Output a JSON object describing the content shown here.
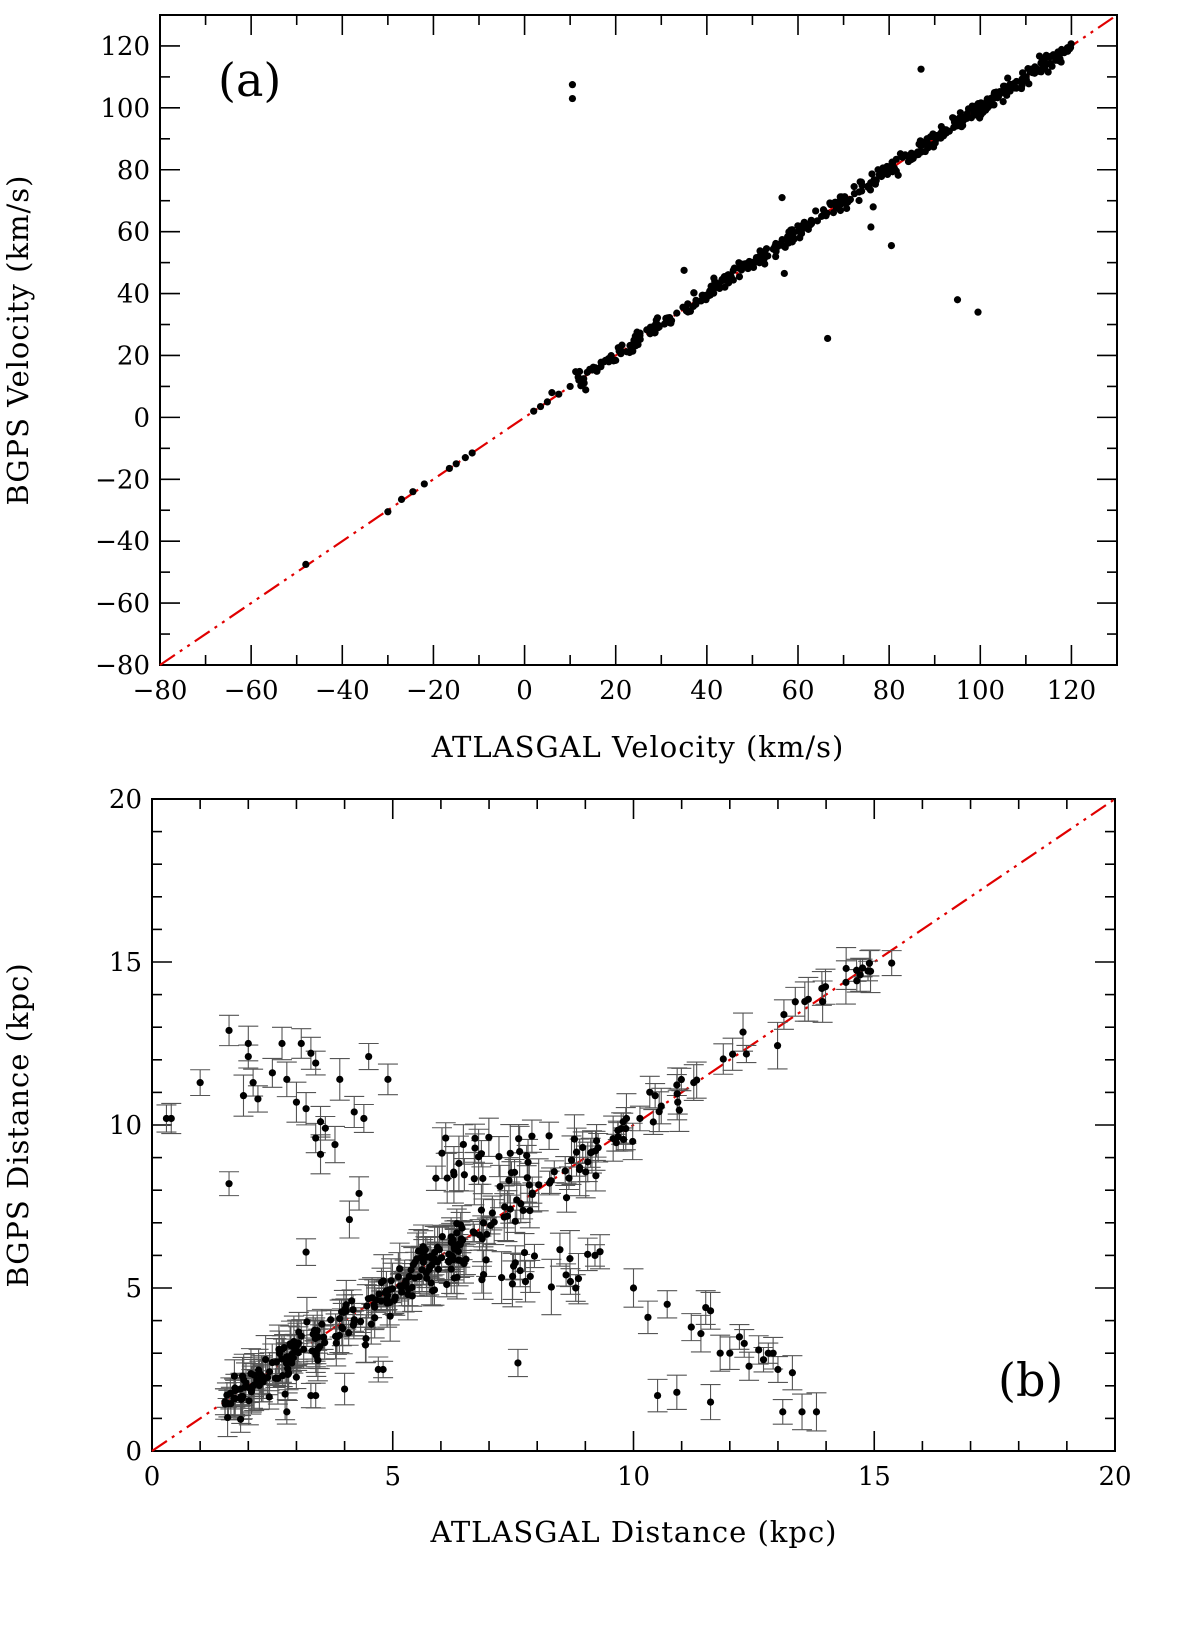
{
  "chart_data": [
    {
      "type": "scatter",
      "panel_label": "(a)",
      "xlabel": "ATLASGAL Velocity (km/s)",
      "ylabel": "BGPS Velocity (km/s)",
      "xlim": [
        -80,
        130
      ],
      "ylim": [
        -80,
        130
      ],
      "xticks": [
        -80,
        -60,
        -40,
        -20,
        0,
        20,
        40,
        60,
        80,
        100,
        120
      ],
      "yticks": [
        -80,
        -60,
        -40,
        -20,
        0,
        20,
        40,
        60,
        80,
        100,
        120
      ],
      "xtick_labels": [
        "−80",
        "−60",
        "−40",
        "−20",
        "0",
        "20",
        "40",
        "60",
        "80",
        "100",
        "120"
      ],
      "ytick_labels": [
        "−80",
        "−60",
        "−40",
        "−20",
        "0",
        "20",
        "40",
        "60",
        "80",
        "100",
        "120"
      ],
      "reference_line": {
        "description": "one-to-one",
        "from": [
          -80,
          -80
        ],
        "to": [
          130,
          130
        ],
        "color": "#e00000"
      },
      "outliers": [
        [
          10.5,
          107.5
        ],
        [
          10.5,
          103
        ],
        [
          87,
          112.5
        ],
        [
          56.5,
          71
        ],
        [
          76.5,
          68
        ],
        [
          76,
          61.5
        ],
        [
          80.5,
          55.5
        ],
        [
          95,
          38
        ],
        [
          99.5,
          34
        ],
        [
          66.5,
          25.5
        ],
        [
          57,
          46.5
        ],
        [
          35,
          47.5
        ]
      ],
      "low_points": [
        [
          -48,
          -47.5
        ],
        [
          -30,
          -30.5
        ],
        [
          -27,
          -26.5
        ],
        [
          -24.5,
          -24
        ],
        [
          -22,
          -21.5
        ],
        [
          -16.5,
          -16.5
        ],
        [
          -15,
          -15
        ],
        [
          -13,
          -13
        ],
        [
          -11.5,
          -11.5
        ],
        [
          2,
          2
        ],
        [
          3.5,
          3.5
        ],
        [
          5,
          5
        ],
        [
          6,
          8
        ],
        [
          7.5,
          7.5
        ],
        [
          10,
          10
        ]
      ],
      "cluster": {
        "x_range": [
          11,
          120
        ],
        "scatter_kms": 1.3
      }
    },
    {
      "type": "scatter",
      "panel_label": "(b)",
      "xlabel": "ATLASGAL Distance (kpc)",
      "ylabel": "BGPS Distance (kpc)",
      "xlim": [
        0,
        20
      ],
      "ylim": [
        0,
        20
      ],
      "xticks": [
        0,
        5,
        10,
        15,
        20
      ],
      "yticks": [
        0,
        5,
        10,
        15,
        20
      ],
      "xtick_labels": [
        "0",
        "5",
        "10",
        "15",
        "20"
      ],
      "ytick_labels": [
        "0",
        "5",
        "10",
        "15",
        "20"
      ],
      "reference_line": {
        "description": "one-to-one",
        "from": [
          0,
          0
        ],
        "to": [
          20,
          20
        ],
        "color": "#e00000"
      },
      "error_bars": "vertical",
      "far_near_points": [
        [
          0.3,
          10.2
        ],
        [
          0.4,
          10.2
        ],
        [
          1.0,
          11.3
        ],
        [
          1.6,
          12.9
        ],
        [
          1.6,
          8.2
        ],
        [
          1.9,
          10.9
        ],
        [
          2.0,
          12.5
        ],
        [
          2.0,
          12.1
        ],
        [
          2.1,
          11.3
        ],
        [
          2.2,
          10.8
        ],
        [
          2.5,
          11.6
        ],
        [
          2.7,
          12.5
        ],
        [
          2.8,
          11.4
        ],
        [
          3.0,
          10.7
        ],
        [
          3.1,
          12.5
        ],
        [
          3.2,
          10.5
        ],
        [
          3.3,
          12.2
        ],
        [
          3.4,
          11.9
        ],
        [
          3.4,
          9.6
        ],
        [
          3.5,
          9.1
        ],
        [
          3.5,
          10.1
        ],
        [
          3.6,
          9.9
        ],
        [
          3.8,
          9.4
        ],
        [
          3.9,
          11.4
        ],
        [
          4.2,
          10.4
        ],
        [
          4.4,
          10.2
        ],
        [
          4.5,
          12.1
        ],
        [
          4.9,
          11.4
        ],
        [
          4.3,
          7.9
        ],
        [
          4.1,
          7.1
        ],
        [
          3.2,
          6.1
        ]
      ],
      "near_far_points": [
        [
          10.0,
          5.0
        ],
        [
          10.3,
          4.1
        ],
        [
          10.5,
          1.7
        ],
        [
          10.7,
          4.5
        ],
        [
          10.9,
          1.8
        ],
        [
          11.2,
          3.8
        ],
        [
          11.4,
          3.6
        ],
        [
          11.5,
          4.4
        ],
        [
          11.6,
          4.3
        ],
        [
          11.6,
          1.5
        ],
        [
          11.8,
          3.0
        ],
        [
          12.0,
          3.0
        ],
        [
          12.2,
          3.5
        ],
        [
          12.3,
          3.3
        ],
        [
          12.4,
          2.6
        ],
        [
          12.6,
          3.1
        ],
        [
          12.7,
          2.8
        ],
        [
          12.8,
          3.0
        ],
        [
          12.9,
          3.0
        ],
        [
          13.0,
          2.5
        ],
        [
          13.1,
          1.2
        ],
        [
          13.3,
          2.4
        ],
        [
          13.5,
          1.2
        ],
        [
          13.8,
          1.2
        ],
        [
          7.6,
          2.7
        ],
        [
          9.2,
          6.0
        ],
        [
          8.6,
          5.4
        ],
        [
          8.8,
          5.0
        ]
      ],
      "outliers": [
        [
          3.3,
          1.7
        ],
        [
          3.4,
          1.7
        ],
        [
          2.8,
          1.2
        ],
        [
          4.7,
          2.5
        ],
        [
          4.8,
          2.5
        ],
        [
          4.0,
          1.9
        ],
        [
          6.1,
          9.6
        ]
      ],
      "cluster": {
        "x_range": [
          0.6,
          15.8
        ],
        "scatter_kpc": 0.35
      }
    }
  ]
}
